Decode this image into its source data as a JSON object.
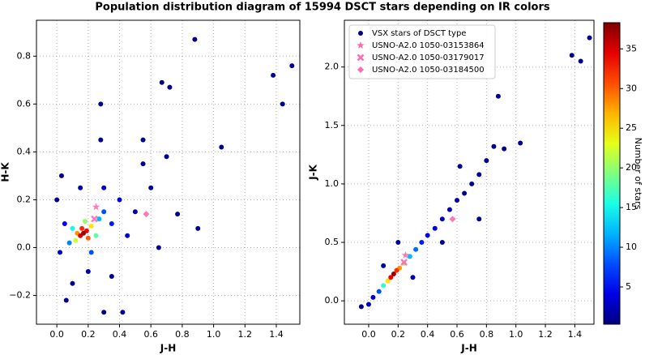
{
  "title": "Population distribution diagram of 15994 DSCT stars depending on IR colors",
  "colorbar": {
    "label": "Number of stars",
    "colormap": "jet",
    "clim": [
      0.3,
      38.3
    ],
    "ticks": [
      5,
      10,
      15,
      20,
      25,
      30,
      35
    ]
  },
  "chart_data": [
    {
      "type": "scatter",
      "xlabel": "J-H",
      "ylabel": "H-K",
      "grid": true,
      "xlim": [
        -0.13,
        1.55
      ],
      "ylim": [
        -0.32,
        0.95
      ],
      "xticks": [
        {
          "value": 0,
          "label": "0.0"
        },
        {
          "value": 0.2,
          "label": "0.2"
        },
        {
          "value": 0.4,
          "label": "0.4"
        },
        {
          "value": 0.6,
          "label": "0.6"
        },
        {
          "value": 0.8,
          "label": "0.8"
        },
        {
          "value": 1,
          "label": "1.0"
        },
        {
          "value": 1.2,
          "label": "1.2"
        },
        {
          "value": 1.4,
          "label": "1.4"
        }
      ],
      "yticks": [
        {
          "value": -0.2,
          "label": "−0.2"
        },
        {
          "value": 0,
          "label": "0.0"
        },
        {
          "value": 0.2,
          "label": "0.2"
        },
        {
          "value": 0.4,
          "label": "0.4"
        },
        {
          "value": 0.6,
          "label": "0.6"
        },
        {
          "value": 0.8,
          "label": "0.8"
        }
      ],
      "series": [
        {
          "marker": "dot",
          "color": "#00008b",
          "x": [
            0.88,
            1.5,
            1.38,
            1.44,
            0.67,
            0.72,
            1.05,
            0.77,
            0.9,
            0.42,
            0.3,
            0.06,
            0.03,
            0.55,
            0.6,
            0.55,
            0.0,
            0.35,
            0.65,
            0.28,
            0.28,
            0.1,
            0.7,
            0.5,
            0.15,
            0.2,
            0.3,
            0.45,
            0.02,
            0.4,
            0.05,
            0.35,
            0.3,
            0.22,
            0.08,
            0.27,
            0.1,
            0.25,
            0.18,
            0.12,
            0.22,
            0.13,
            0.2,
            0.16,
            0.19,
            0.15,
            0.17
          ],
          "y": [
            0.87,
            0.76,
            0.72,
            0.6,
            0.69,
            0.67,
            0.42,
            0.14,
            0.08,
            -0.27,
            -0.27,
            -0.22,
            0.3,
            0.45,
            0.25,
            0.35,
            0.2,
            -0.12,
            0.0,
            0.45,
            0.6,
            -0.15,
            0.38,
            0.15,
            0.25,
            -0.1,
            0.25,
            0.05,
            -0.02,
            0.2,
            0.1,
            0.1,
            0.15,
            -0.02,
            0.02,
            0.12,
            0.08,
            0.05,
            0.11,
            0.03,
            0.09,
            0.06,
            0.04,
            0.08,
            0.07,
            0.05,
            0.06
          ],
          "density": [
            1,
            1,
            1,
            1,
            1,
            1,
            1,
            1,
            1,
            1,
            1,
            1,
            1,
            1,
            1,
            1,
            1,
            1,
            1,
            1,
            1,
            1,
            1,
            2,
            2,
            2,
            3,
            3,
            3,
            4,
            5,
            6,
            8,
            8,
            10,
            12,
            15,
            18,
            20,
            22,
            25,
            28,
            30,
            32,
            34,
            35,
            37
          ]
        },
        {
          "marker": "star",
          "color": "#ff69b4",
          "x": [
            0.25
          ],
          "y": [
            0.17
          ]
        },
        {
          "marker": "x",
          "color": "#ff69b4",
          "x": [
            0.24
          ],
          "y": [
            0.12
          ]
        },
        {
          "marker": "diamond",
          "color": "#ff69b4",
          "x": [
            0.57
          ],
          "y": [
            0.14
          ]
        }
      ]
    },
    {
      "type": "scatter",
      "xlabel": "J-H",
      "ylabel": "J-K",
      "grid": true,
      "legend": "upper left",
      "xlim": [
        -0.165,
        1.53
      ],
      "ylim": [
        -0.2,
        2.4
      ],
      "xticks": [
        {
          "value": 0,
          "label": "0.0"
        },
        {
          "value": 0.2,
          "label": "0.2"
        },
        {
          "value": 0.4,
          "label": "0.4"
        },
        {
          "value": 0.6,
          "label": "0.6"
        },
        {
          "value": 0.8,
          "label": "0.8"
        },
        {
          "value": 1,
          "label": "1.0"
        },
        {
          "value": 1.2,
          "label": "1.2"
        },
        {
          "value": 1.4,
          "label": "1.4"
        }
      ],
      "yticks": [
        {
          "value": 0,
          "label": "0.0"
        },
        {
          "value": 0.5,
          "label": "0.5"
        },
        {
          "value": 1,
          "label": "1.0"
        },
        {
          "value": 1.5,
          "label": "1.5"
        },
        {
          "value": 2,
          "label": "2.0"
        }
      ],
      "series": [
        {
          "name": "VSX stars of DSCT type",
          "marker": "dot",
          "color": "#00008b",
          "x": [
            0.65,
            0.7,
            0.75,
            0.62,
            0.8,
            0.85,
            0.92,
            0.88,
            1.03,
            1.5,
            1.38,
            1.44,
            -0.05,
            0.5,
            0.2,
            0.75,
            0.55,
            0.6,
            0.0,
            0.3,
            0.1,
            0.03,
            0.5,
            0.45,
            0.4,
            0.36,
            0.07,
            0.32,
            0.28,
            0.1,
            0.24,
            0.13,
            0.21,
            0.19,
            0.15,
            0.17
          ],
          "y": [
            0.92,
            1.0,
            1.08,
            1.15,
            1.2,
            1.32,
            1.3,
            1.75,
            1.35,
            2.25,
            2.1,
            2.05,
            -0.05,
            0.5,
            0.5,
            0.7,
            0.78,
            0.86,
            -0.03,
            0.2,
            0.3,
            0.03,
            0.7,
            0.62,
            0.56,
            0.5,
            0.08,
            0.44,
            0.38,
            0.13,
            0.32,
            0.17,
            0.28,
            0.26,
            0.2,
            0.23
          ],
          "density": [
            1,
            1,
            1,
            1,
            1,
            1,
            1,
            1,
            1,
            1,
            1,
            1,
            1,
            1,
            1,
            1,
            2,
            2,
            2,
            2,
            2,
            3,
            3,
            4,
            5,
            6,
            8,
            9,
            12,
            16,
            20,
            25,
            28,
            32,
            34,
            37
          ]
        },
        {
          "name": "USNO-A2.0 1050-03153864",
          "marker": "star",
          "color": "#ff69b4",
          "x": [
            0.25
          ],
          "y": [
            0.39
          ]
        },
        {
          "name": "USNO-A2.0 1050-03179017",
          "marker": "x",
          "color": "#ff69b4",
          "x": [
            0.24
          ],
          "y": [
            0.33
          ]
        },
        {
          "name": "USNO-A2.0 1050-03184500",
          "marker": "diamond",
          "color": "#ff69b4",
          "x": [
            0.57
          ],
          "y": [
            0.7
          ]
        }
      ]
    }
  ]
}
